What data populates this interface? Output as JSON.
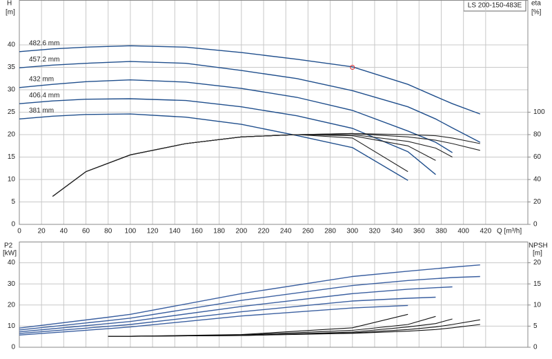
{
  "chart_data": [
    {
      "type": "line",
      "title": "LS 200-150-483E",
      "xlabel": "Q [m³/h]",
      "ylabel": [
        "H",
        "[m]"
      ],
      "y2label": [
        "eta",
        "[%]"
      ],
      "x": [
        0,
        30,
        60,
        100,
        150,
        200,
        250,
        300,
        350,
        375,
        390,
        415
      ],
      "xlim": [
        0,
        458
      ],
      "xticks": [
        0,
        20,
        40,
        60,
        80,
        100,
        120,
        140,
        160,
        180,
        200,
        220,
        240,
        260,
        280,
        300,
        320,
        340,
        360,
        380,
        400,
        420
      ],
      "ylim": [
        0,
        50
      ],
      "yticks": [
        0,
        5,
        10,
        15,
        20,
        25,
        30,
        35,
        40
      ],
      "y2lim": [
        0,
        200
      ],
      "y2ticks": [
        0,
        20,
        40,
        60,
        80,
        100
      ],
      "grid": true,
      "series": [
        {
          "name": "482.6 mm",
          "color": "#1f4e8c",
          "values": [
            38.5,
            39.1,
            39.5,
            39.8,
            39.5,
            38.3,
            36.8,
            35.1,
            31.2,
            28.5,
            26.9,
            24.6
          ]
        },
        {
          "name": "457.2 mm",
          "color": "#1f4e8c",
          "values": [
            34.9,
            35.5,
            35.9,
            36.3,
            35.9,
            34.3,
            32.5,
            29.8,
            26.2,
            23.5,
            21.5,
            18.3
          ]
        },
        {
          "name": "432 mm",
          "color": "#1f4e8c",
          "values": [
            30.5,
            31.2,
            31.8,
            32.2,
            31.7,
            30.3,
            28.3,
            25.4,
            20.8,
            18.3,
            16.0,
            null
          ]
        },
        {
          "name": "406.4 mm",
          "color": "#1f4e8c",
          "values": [
            26.9,
            27.5,
            27.9,
            28.0,
            27.6,
            26.2,
            24.2,
            21.4,
            16.2,
            11.1,
            null,
            null
          ]
        },
        {
          "name": "381 mm",
          "color": "#1f4e8c",
          "values": [
            23.5,
            24.1,
            24.5,
            24.6,
            23.9,
            22.3,
            19.8,
            17.1,
            9.8,
            null,
            null,
            null
          ]
        },
        {
          "axis": "y2",
          "color": "#222222",
          "values": [
            null,
            25,
            47,
            62,
            72,
            78,
            80,
            81,
            80,
            79,
            77,
            72
          ]
        },
        {
          "axis": "y2",
          "color": "#222222",
          "values": [
            null,
            25,
            47,
            62,
            72,
            78,
            80,
            81,
            78,
            75,
            72,
            66
          ]
        },
        {
          "axis": "y2",
          "color": "#222222",
          "values": [
            null,
            25,
            47,
            62,
            72,
            78,
            80,
            80,
            74,
            68,
            60,
            null
          ]
        },
        {
          "axis": "y2",
          "color": "#222222",
          "values": [
            null,
            25,
            47,
            62,
            72,
            78,
            80,
            79,
            70,
            57,
            null,
            null
          ]
        },
        {
          "axis": "y2",
          "color": "#222222",
          "values": [
            null,
            25,
            47,
            62,
            72,
            78,
            80,
            77,
            47,
            null,
            null,
            null
          ]
        }
      ],
      "markers": [
        {
          "x": 300,
          "y": 35,
          "color": "#e03030"
        }
      ]
    },
    {
      "type": "line",
      "ylabel": [
        "P2",
        "[kW]"
      ],
      "y2label": [
        "NPSH",
        "[m]"
      ],
      "x": [
        0,
        80,
        100,
        200,
        300,
        350,
        375,
        390,
        415
      ],
      "xlim": [
        0,
        458
      ],
      "ylim": [
        0,
        50
      ],
      "yticks": [
        0,
        10,
        20,
        30,
        40
      ],
      "y2lim": [
        0,
        25
      ],
      "y2ticks": [
        0,
        5,
        10,
        15,
        20
      ],
      "grid": true,
      "series": [
        {
          "color": "#3a5fa0",
          "values": [
            9.1,
            14.2,
            15.6,
            25.4,
            33.5,
            36.0,
            37.2,
            37.9,
            39.0
          ]
        },
        {
          "color": "#3a5fa0",
          "values": [
            8.2,
            12.6,
            13.8,
            22.2,
            29.2,
            31.6,
            32.5,
            33.0,
            33.5
          ]
        },
        {
          "color": "#3a5fa0",
          "values": [
            7.3,
            11.2,
            12.2,
            19.3,
            25.4,
            27.5,
            28.2,
            28.6,
            null
          ]
        },
        {
          "color": "#3a5fa0",
          "values": [
            6.5,
            9.9,
            10.8,
            16.8,
            21.9,
            23.2,
            23.7,
            null,
            null
          ]
        },
        {
          "color": "#3a5fa0",
          "values": [
            5.8,
            8.8,
            9.6,
            14.8,
            18.6,
            19.8,
            null,
            null,
            null
          ]
        },
        {
          "axis": "y2",
          "color": "#111111",
          "values": [
            null,
            2.6,
            2.6,
            2.8,
            3.3,
            3.8,
            4.2,
            4.6,
            5.4
          ]
        },
        {
          "axis": "y2",
          "color": "#111111",
          "values": [
            null,
            2.6,
            2.6,
            2.8,
            3.4,
            4.2,
            4.8,
            5.4,
            6.5
          ]
        },
        {
          "axis": "y2",
          "color": "#111111",
          "values": [
            null,
            2.6,
            2.6,
            2.8,
            3.6,
            4.8,
            5.6,
            6.7,
            null
          ]
        },
        {
          "axis": "y2",
          "color": "#111111",
          "values": [
            null,
            2.6,
            2.6,
            2.9,
            4.0,
            5.4,
            7.3,
            null,
            null
          ]
        },
        {
          "axis": "y2",
          "color": "#111111",
          "values": [
            null,
            2.6,
            2.6,
            3.0,
            4.6,
            7.8,
            null,
            null,
            null
          ]
        }
      ]
    }
  ]
}
